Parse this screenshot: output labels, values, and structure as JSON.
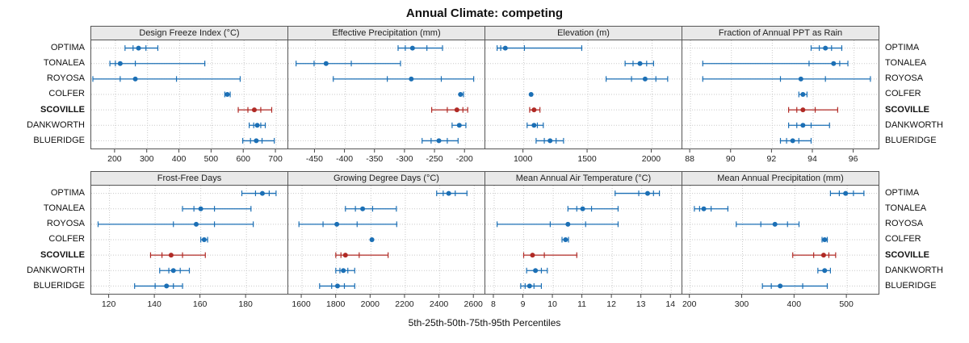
{
  "title": "Annual Climate: competing",
  "footer": "5th-25th-50th-75th-95th Percentiles",
  "colors": {
    "site": "#1b6fb5",
    "highlight": "#b02a25",
    "header_bg": "#e9e9e9",
    "grid": "#c9c9c9",
    "axis": "#444444"
  },
  "chart_data": {
    "type": "dotplot",
    "subtype": "percentile-intervals",
    "percentile_labels": [
      "5th",
      "25th",
      "50th",
      "75th",
      "95th"
    ],
    "sites": [
      "OPTIMA",
      "TONALEA",
      "ROYOSA",
      "COLFER",
      "SCOVILLE",
      "DANKWORTH",
      "BLUERIDGE"
    ],
    "highlight_site": "SCOVILLE",
    "legend_position": "none",
    "grid": true,
    "layout_rows": [
      [
        0,
        1,
        2,
        3
      ],
      [
        4,
        5,
        6,
        7
      ]
    ],
    "panels": [
      {
        "title": "Design Freeze Index (°C)",
        "domain": [
          125,
          735
        ],
        "ticks": [
          200,
          300,
          400,
          500,
          600,
          700
        ],
        "values": [
          [
            230,
            255,
            272,
            295,
            332
          ],
          [
            183,
            200,
            215,
            262,
            478
          ],
          [
            130,
            215,
            262,
            390,
            588
          ],
          [
            540,
            544,
            548,
            552,
            557
          ],
          [
            582,
            612,
            632,
            652,
            686
          ],
          [
            616,
            630,
            641,
            652,
            666
          ],
          [
            596,
            620,
            638,
            656,
            694
          ]
        ]
      },
      {
        "title": "Effective Precipitation (mm)",
        "domain": [
          -495,
          -168
        ],
        "ticks": [
          -450,
          -400,
          -350,
          -300,
          -250,
          -200
        ],
        "values": [
          [
            -312,
            -300,
            -288,
            -264,
            -238
          ],
          [
            -482,
            -452,
            -432,
            -390,
            -308
          ],
          [
            -420,
            -330,
            -290,
            -240,
            -186
          ],
          [
            -212,
            -210,
            -208,
            -206,
            -203
          ],
          [
            -256,
            -230,
            -214,
            -204,
            -196
          ],
          [
            -222,
            -215,
            -210,
            -206,
            -199
          ],
          [
            -272,
            -257,
            -244,
            -230,
            -212
          ]
        ]
      },
      {
        "title": "Elevation (m)",
        "domain": [
          700,
          2230
        ],
        "ticks": [
          1000,
          1500,
          2000
        ],
        "values": [
          [
            792,
            820,
            856,
            1005,
            1452
          ],
          [
            1790,
            1852,
            1906,
            1958,
            2012
          ],
          [
            1642,
            1840,
            1946,
            2030,
            2122
          ],
          [
            1040,
            1050,
            1057,
            1064,
            1074
          ],
          [
            1046,
            1064,
            1080,
            1100,
            1126
          ],
          [
            1026,
            1058,
            1080,
            1106,
            1152
          ],
          [
            1096,
            1160,
            1205,
            1252,
            1310
          ]
        ]
      },
      {
        "title": "Fraction of Annual PPT as Rain",
        "domain": [
          87.6,
          97.2
        ],
        "ticks": [
          88,
          90,
          92,
          94,
          96
        ],
        "values": [
          [
            93.9,
            94.3,
            94.6,
            94.9,
            95.4
          ],
          [
            88.6,
            93.8,
            95.0,
            95.3,
            95.7
          ],
          [
            88.6,
            92.4,
            93.4,
            94.6,
            96.8
          ],
          [
            93.3,
            93.4,
            93.5,
            93.6,
            93.7
          ],
          [
            92.8,
            93.2,
            93.5,
            94.1,
            95.2
          ],
          [
            92.8,
            93.2,
            93.5,
            93.9,
            94.8
          ],
          [
            92.4,
            92.7,
            93.0,
            93.3,
            93.9
          ]
        ]
      },
      {
        "title": "Frost-Free Days",
        "domain": [
          112,
          198
        ],
        "ticks": [
          120,
          140,
          160,
          180
        ],
        "values": [
          [
            178,
            184,
            187,
            190,
            193
          ],
          [
            152,
            157,
            160,
            166,
            182
          ],
          [
            115,
            148,
            158,
            166,
            183
          ],
          [
            160,
            161,
            161.5,
            162,
            163
          ],
          [
            138,
            143,
            147,
            152,
            162
          ],
          [
            142,
            146,
            148,
            151,
            155
          ],
          [
            131,
            140,
            145,
            148,
            152
          ]
        ]
      },
      {
        "title": "Growing Degree Days (°C)",
        "domain": [
          1520,
          2660
        ],
        "ticks": [
          1600,
          1800,
          2000,
          2200,
          2400,
          2600
        ],
        "values": [
          [
            2382,
            2420,
            2452,
            2490,
            2558
          ],
          [
            1852,
            1910,
            1952,
            2010,
            2148
          ],
          [
            1582,
            1722,
            1802,
            1920,
            2150
          ],
          [
            1992,
            2000,
            2006,
            2012,
            2020
          ],
          [
            1796,
            1826,
            1852,
            1932,
            2100
          ],
          [
            1796,
            1820,
            1840,
            1866,
            1906
          ],
          [
            1702,
            1772,
            1806,
            1846,
            1906
          ]
        ]
      },
      {
        "title": "Mean Annual Air Temperature (°C)",
        "domain": [
          7.7,
          14.35
        ],
        "ticks": [
          8,
          9,
          10,
          11,
          12,
          13,
          14
        ],
        "values": [
          [
            12.1,
            12.9,
            13.2,
            13.4,
            13.6
          ],
          [
            10.5,
            10.8,
            11.0,
            11.3,
            12.2
          ],
          [
            8.1,
            9.9,
            10.5,
            11.1,
            12.2
          ],
          [
            10.3,
            10.38,
            10.42,
            10.47,
            10.52
          ],
          [
            9.0,
            9.2,
            9.3,
            9.7,
            10.8
          ],
          [
            9.1,
            9.3,
            9.4,
            9.6,
            9.8
          ],
          [
            8.9,
            9.05,
            9.2,
            9.35,
            9.6
          ]
        ]
      },
      {
        "title": "Mean Annual Precipitation (mm)",
        "domain": [
          185,
          560
        ],
        "ticks": [
          200,
          300,
          400,
          500
        ],
        "values": [
          [
            468,
            485,
            497,
            512,
            532
          ],
          [
            208,
            218,
            226,
            240,
            272
          ],
          [
            288,
            335,
            362,
            386,
            408
          ],
          [
            452,
            455,
            457,
            459,
            462
          ],
          [
            396,
            436,
            455,
            465,
            478
          ],
          [
            444,
            452,
            457,
            461,
            468
          ],
          [
            338,
            355,
            372,
            415,
            462
          ]
        ]
      }
    ]
  }
}
